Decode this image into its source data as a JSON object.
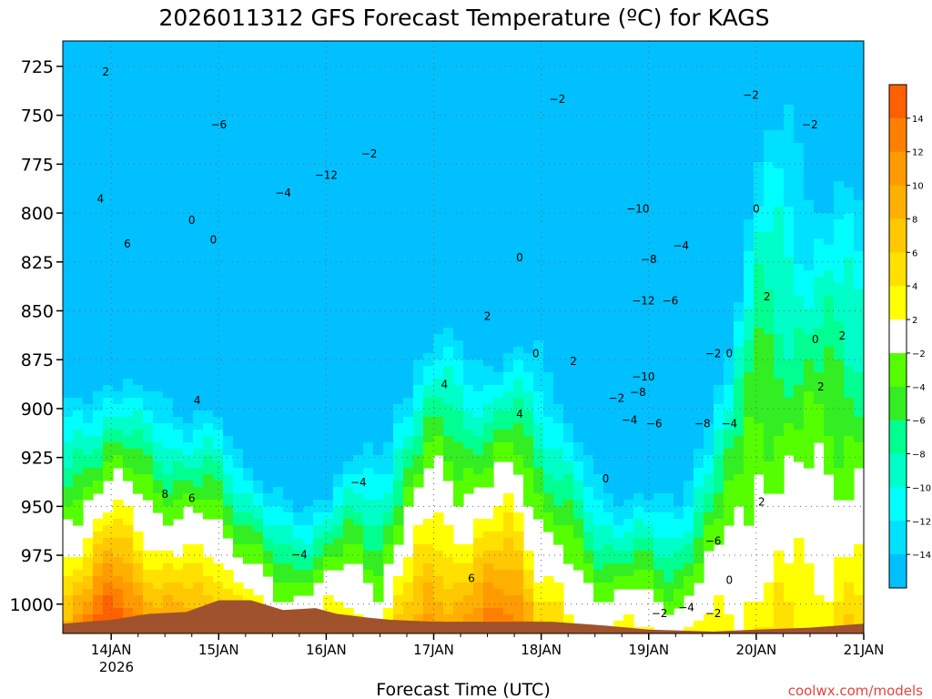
{
  "chart_data": {
    "type": "heatmap",
    "title": "2026011312 GFS Forecast Temperature (ºC) for KAGS",
    "xlabel": "Forecast Time (UTC)",
    "ylabel": "",
    "credit": "coolwx.com/models",
    "x_tick_labels": [
      "14JAN",
      "15JAN",
      "16JAN",
      "17JAN",
      "18JAN",
      "19JAN",
      "20JAN",
      "21JAN"
    ],
    "x_year_label": "2026",
    "x_range_days": [
      -0.45,
      7.0
    ],
    "y_ticks": [
      725,
      750,
      775,
      800,
      825,
      850,
      875,
      900,
      925,
      950,
      975,
      1000
    ],
    "y_range_hpa": [
      1015,
      712
    ],
    "colorbar": {
      "ticks": [
        14,
        12,
        10,
        8,
        6,
        4,
        2,
        -2,
        -4,
        -6,
        -8,
        -10,
        -12,
        -14
      ],
      "colors": [
        "#ff6000",
        "#ff8000",
        "#ff9a00",
        "#ffb000",
        "#ffc800",
        "#ffe000",
        "#ffff00",
        "#ffffff",
        "#55ff00",
        "#33ee22",
        "#00ff90",
        "#00ffc8",
        "#00ffff",
        "#00e0ff",
        "#00c0ff"
      ]
    },
    "columns": [
      {
        "d": -0.45,
        "tgr": 7,
        "lr": 5.5
      },
      {
        "d": -0.2,
        "tgr": 11,
        "lr": 5.8
      },
      {
        "d": 0.0,
        "tgr": 14,
        "lr": 6.0
      },
      {
        "d": 0.25,
        "tgr": 11,
        "lr": 5.8
      },
      {
        "d": 0.5,
        "tgr": 8,
        "lr": 5.2
      },
      {
        "d": 0.75,
        "tgr": 7,
        "lr": 5.5
      },
      {
        "d": 1.0,
        "tgr": 8,
        "lr": 5.8
      },
      {
        "d": 1.25,
        "tgr": 4,
        "lr": 6.0
      },
      {
        "d": 1.5,
        "tgr": -1,
        "lr": 6.2
      },
      {
        "d": 1.75,
        "tgr": 0,
        "lr": 6.8
      },
      {
        "d": 2.0,
        "tgr": 1,
        "lr": 6.5
      },
      {
        "d": 2.25,
        "tgr": 2,
        "lr": 5.5
      },
      {
        "d": 2.5,
        "tgr": 0,
        "lr": 4.5
      },
      {
        "d": 2.7,
        "tgr": 4,
        "lr": 4.0
      },
      {
        "d": 3.0,
        "tgr": 10,
        "lr": 4.4
      },
      {
        "d": 3.25,
        "tgr": 8,
        "lr": 4.2
      },
      {
        "d": 3.5,
        "tgr": 10,
        "lr": 4.8
      },
      {
        "d": 3.75,
        "tgr": 13,
        "lr": 5.4
      },
      {
        "d": 4.0,
        "tgr": 4,
        "lr": 3.5
      },
      {
        "d": 4.25,
        "tgr": 1,
        "lr": 4.0
      },
      {
        "d": 4.5,
        "tgr": 0,
        "lr": 5.5
      },
      {
        "d": 4.75,
        "tgr": -1,
        "lr": 6.0
      },
      {
        "d": 5.0,
        "tgr": -1,
        "lr": 6.3
      },
      {
        "d": 5.25,
        "tgr": -2,
        "lr": 5.5
      },
      {
        "d": 5.5,
        "tgr": 0,
        "lr": 3.8
      },
      {
        "d": 5.75,
        "tgr": 2,
        "lr": 3.0
      },
      {
        "d": 6.0,
        "tgr": 3,
        "lr": 1.8
      },
      {
        "d": 6.25,
        "tgr": 3,
        "lr": 1.8
      },
      {
        "d": 6.5,
        "tgr": 3,
        "lr": 2.0
      },
      {
        "d": 6.75,
        "tgr": 4,
        "lr": 2.2
      },
      {
        "d": 7.0,
        "tgr": 4,
        "lr": 2.2
      }
    ],
    "terrain_hpa": [
      {
        "d": -0.45,
        "p": 1010
      },
      {
        "d": 0.0,
        "p": 1008
      },
      {
        "d": 0.35,
        "p": 1005
      },
      {
        "d": 0.7,
        "p": 1004
      },
      {
        "d": 1.0,
        "p": 998
      },
      {
        "d": 1.3,
        "p": 998
      },
      {
        "d": 1.6,
        "p": 1003
      },
      {
        "d": 1.9,
        "p": 1002
      },
      {
        "d": 2.1,
        "p": 1005
      },
      {
        "d": 2.4,
        "p": 1007
      },
      {
        "d": 2.6,
        "p": 1008
      },
      {
        "d": 3.0,
        "p": 1009
      },
      {
        "d": 3.6,
        "p": 1009
      },
      {
        "d": 4.1,
        "p": 1009
      },
      {
        "d": 4.6,
        "p": 1011
      },
      {
        "d": 5.0,
        "p": 1013
      },
      {
        "d": 5.6,
        "p": 1014
      },
      {
        "d": 6.0,
        "p": 1013
      },
      {
        "d": 6.5,
        "p": 1012
      },
      {
        "d": 7.0,
        "p": 1010
      }
    ],
    "contour_labels": [
      {
        "d": -0.05,
        "p": 728,
        "t": "2"
      },
      {
        "d": -0.1,
        "p": 793,
        "t": "4"
      },
      {
        "d": 0.15,
        "p": 816,
        "t": "6"
      },
      {
        "d": 0.75,
        "p": 804,
        "t": "0"
      },
      {
        "d": 0.95,
        "p": 814,
        "t": "0"
      },
      {
        "d": 1.0,
        "p": 755,
        "t": "−6"
      },
      {
        "d": 1.6,
        "p": 790,
        "t": "−4"
      },
      {
        "d": 2.0,
        "p": 781,
        "t": "−12"
      },
      {
        "d": 2.4,
        "p": 770,
        "t": "−2"
      },
      {
        "d": 0.8,
        "p": 896,
        "t": "4"
      },
      {
        "d": 0.5,
        "p": 944,
        "t": "8"
      },
      {
        "d": 0.75,
        "p": 946,
        "t": "6"
      },
      {
        "d": 1.75,
        "p": 975,
        "t": "−4"
      },
      {
        "d": 2.3,
        "p": 938,
        "t": "−4"
      },
      {
        "d": 3.1,
        "p": 888,
        "t": "4"
      },
      {
        "d": 3.5,
        "p": 853,
        "t": "2"
      },
      {
        "d": 3.8,
        "p": 823,
        "t": "0"
      },
      {
        "d": 3.95,
        "p": 872,
        "t": "0"
      },
      {
        "d": 3.8,
        "p": 903,
        "t": "4"
      },
      {
        "d": 3.35,
        "p": 987,
        "t": "6"
      },
      {
        "d": 4.15,
        "p": 742,
        "t": "−2"
      },
      {
        "d": 4.3,
        "p": 876,
        "t": "2"
      },
      {
        "d": 4.7,
        "p": 895,
        "t": "−2"
      },
      {
        "d": 4.82,
        "p": 906,
        "t": "−4"
      },
      {
        "d": 4.95,
        "p": 884,
        "t": "−10"
      },
      {
        "d": 4.9,
        "p": 892,
        "t": "−8"
      },
      {
        "d": 5.05,
        "p": 908,
        "t": "−6"
      },
      {
        "d": 4.9,
        "p": 798,
        "t": "−10"
      },
      {
        "d": 5.0,
        "p": 824,
        "t": "−8"
      },
      {
        "d": 4.95,
        "p": 845,
        "t": "−12"
      },
      {
        "d": 5.2,
        "p": 845,
        "t": "−6"
      },
      {
        "d": 5.3,
        "p": 817,
        "t": "−4"
      },
      {
        "d": 4.6,
        "p": 936,
        "t": "0"
      },
      {
        "d": 5.5,
        "p": 908,
        "t": "−8"
      },
      {
        "d": 5.75,
        "p": 908,
        "t": "−4"
      },
      {
        "d": 5.6,
        "p": 872,
        "t": "−2"
      },
      {
        "d": 5.75,
        "p": 872,
        "t": "0"
      },
      {
        "d": 5.6,
        "p": 968,
        "t": "−6"
      },
      {
        "d": 5.75,
        "p": 988,
        "t": "0"
      },
      {
        "d": 5.35,
        "p": 1002,
        "t": "−4"
      },
      {
        "d": 5.6,
        "p": 1005,
        "t": "−2"
      },
      {
        "d": 5.1,
        "p": 1005,
        "t": "−2"
      },
      {
        "d": 6.1,
        "p": 843,
        "t": "2"
      },
      {
        "d": 6.0,
        "p": 798,
        "t": "0"
      },
      {
        "d": 6.05,
        "p": 948,
        "t": "2"
      },
      {
        "d": 6.6,
        "p": 889,
        "t": "2"
      },
      {
        "d": 6.55,
        "p": 865,
        "t": "0"
      },
      {
        "d": 6.8,
        "p": 863,
        "t": "2"
      },
      {
        "d": 5.95,
        "p": 740,
        "t": "−2"
      },
      {
        "d": 6.5,
        "p": 755,
        "t": "−2"
      }
    ]
  }
}
